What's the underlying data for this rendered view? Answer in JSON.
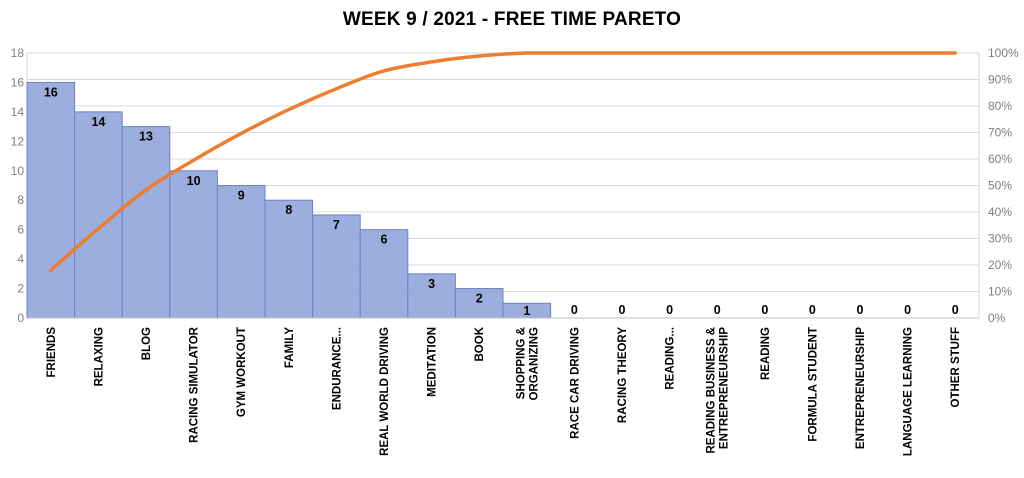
{
  "title": "WEEK 9 / 2021 - FREE TIME PARETO",
  "chart_data": {
    "type": "pareto",
    "title": "WEEK 9 / 2021 - FREE TIME PARETO",
    "categories": [
      "FRIENDS",
      "RELAXING",
      "BLOG",
      "RACING SIMULATOR",
      "GYM WORKOUT",
      "FAMILY",
      "ENDURANCE...",
      "REAL WORLD DRIVING",
      "MEDITATION",
      "BOOK",
      "SHOPPING & ORGANIZING",
      "RACE CAR DRIVING",
      "RACING THEORY",
      "READING...",
      "READING BUSINESS & ENTREPRENEURSHIP",
      "READING",
      "FORMULA STUDENT",
      "ENTREPRENEURSHIP",
      "LANGUAGE LEARNING",
      "OTHER STUFF"
    ],
    "category_label_lines": [
      [
        "FRIENDS"
      ],
      [
        "RELAXING"
      ],
      [
        "BLOG"
      ],
      [
        "RACING SIMULATOR"
      ],
      [
        "GYM WORKOUT"
      ],
      [
        "FAMILY"
      ],
      [
        "ENDURANCE..."
      ],
      [
        "REAL WORLD DRIVING"
      ],
      [
        "MEDITATION"
      ],
      [
        "BOOK"
      ],
      [
        "SHOPPING &",
        "ORGANIZING"
      ],
      [
        "RACE CAR DRIVING"
      ],
      [
        "RACING THEORY"
      ],
      [
        "READING..."
      ],
      [
        "READING BUSINESS &",
        "ENTREPRENEURSHIP"
      ],
      [
        "READING"
      ],
      [
        "FORMULA STUDENT"
      ],
      [
        "ENTREPRENEURSHIP"
      ],
      [
        "LANGUAGE LEARNING"
      ],
      [
        "OTHER STUFF"
      ]
    ],
    "values": [
      16,
      14,
      13,
      10,
      9,
      8,
      7,
      6,
      3,
      2,
      1,
      0,
      0,
      0,
      0,
      0,
      0,
      0,
      0,
      0
    ],
    "cumulative_pct": [
      17.98,
      33.71,
      48.31,
      59.55,
      69.66,
      78.65,
      86.52,
      93.26,
      96.63,
      98.88,
      100,
      100,
      100,
      100,
      100,
      100,
      100,
      100,
      100,
      100
    ],
    "left_axis": {
      "min": 0,
      "max": 18,
      "ticks": [
        0,
        2,
        4,
        6,
        8,
        10,
        12,
        14,
        16,
        18
      ]
    },
    "right_axis": {
      "min": 0,
      "max": 100,
      "ticks": [
        0,
        10,
        20,
        30,
        40,
        50,
        60,
        70,
        80,
        90,
        100
      ],
      "suffix": "%"
    },
    "grid": "horizontal, every 10%",
    "legend": "none",
    "colors": {
      "bar_fill": "#8EA3DA",
      "bar_border": "#6D82C4",
      "line": "#ED7D31",
      "gridline": "#D9D9D9",
      "axis_line": "#BFBFBF",
      "axis_text": "#7F7F7F",
      "label_text": "#000000",
      "title_text": "#000000"
    }
  }
}
